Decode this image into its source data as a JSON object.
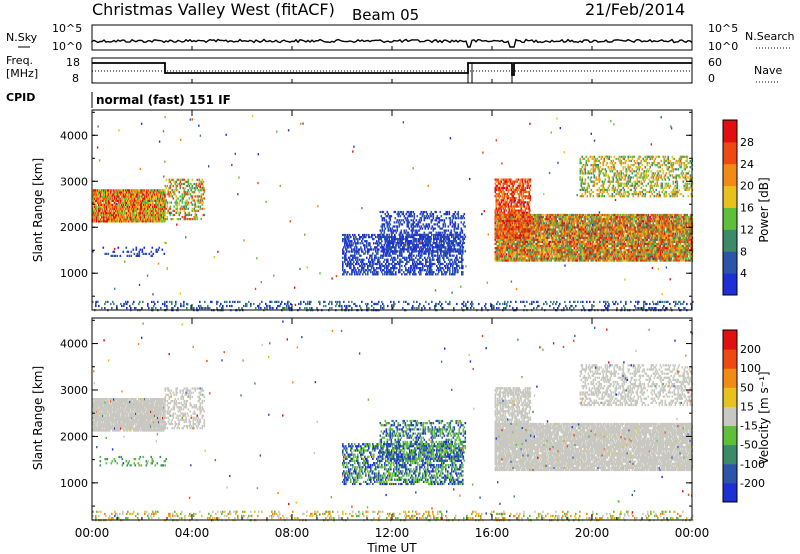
{
  "header": {
    "title": "Christmas Valley West (fitACF)",
    "beam": "Beam 05",
    "date": "21/Feb/2014"
  },
  "top_panels": {
    "nsky_label": "N.Sky",
    "nsky_ticks": [
      "10^5",
      "10^0"
    ],
    "nsearch_label": "N.Search",
    "freq_label": "Freq.",
    "freq_unit": "[MHz]",
    "freq_ticks": [
      "18",
      "8"
    ],
    "nave_label": "Nave",
    "nave_ticks": [
      "60",
      "0"
    ],
    "cpid_label": "CPID",
    "cpid_value": "normal (fast) 151 IF"
  },
  "chart_data": [
    {
      "type": "heatmap",
      "name_panel": "power",
      "ylabel": "Slant Range [km]",
      "yticks": [
        "1000",
        "2000",
        "3000",
        "4000"
      ],
      "ylim": [
        200,
        4550
      ],
      "colorbar_label": "Power [dB]",
      "colorbar_ticks": [
        "4",
        "8",
        "12",
        "16",
        "20",
        "24",
        "28"
      ],
      "colors": [
        "#1e2fd6",
        "#2a55a8",
        "#3c8a6a",
        "#5fbf3a",
        "#e8c21a",
        "#f28a16",
        "#ec4a12",
        "#e01010"
      ]
    },
    {
      "type": "heatmap",
      "name_panel": "velocity",
      "ylabel": "Slant Range [km]",
      "yticks": [
        "1000",
        "2000",
        "3000",
        "4000"
      ],
      "ylim": [
        200,
        4550
      ],
      "colorbar_label": "Velocity [m s⁻¹]",
      "colorbar_ticks": [
        "200",
        "100",
        "50",
        "15",
        "-15",
        "-50",
        "-100",
        "-200"
      ],
      "colors": [
        "#1e2fd6",
        "#2a55a8",
        "#3c8a6a",
        "#5fbf3a",
        "#c8c8c0",
        "#e8c21a",
        "#f28a16",
        "#ec4a12",
        "#e01010"
      ]
    }
  ],
  "xaxis": {
    "label": "Time UT",
    "ticks": [
      "00:00",
      "04:00",
      "08:00",
      "12:00",
      "16:00",
      "20:00",
      "00:00"
    ]
  }
}
